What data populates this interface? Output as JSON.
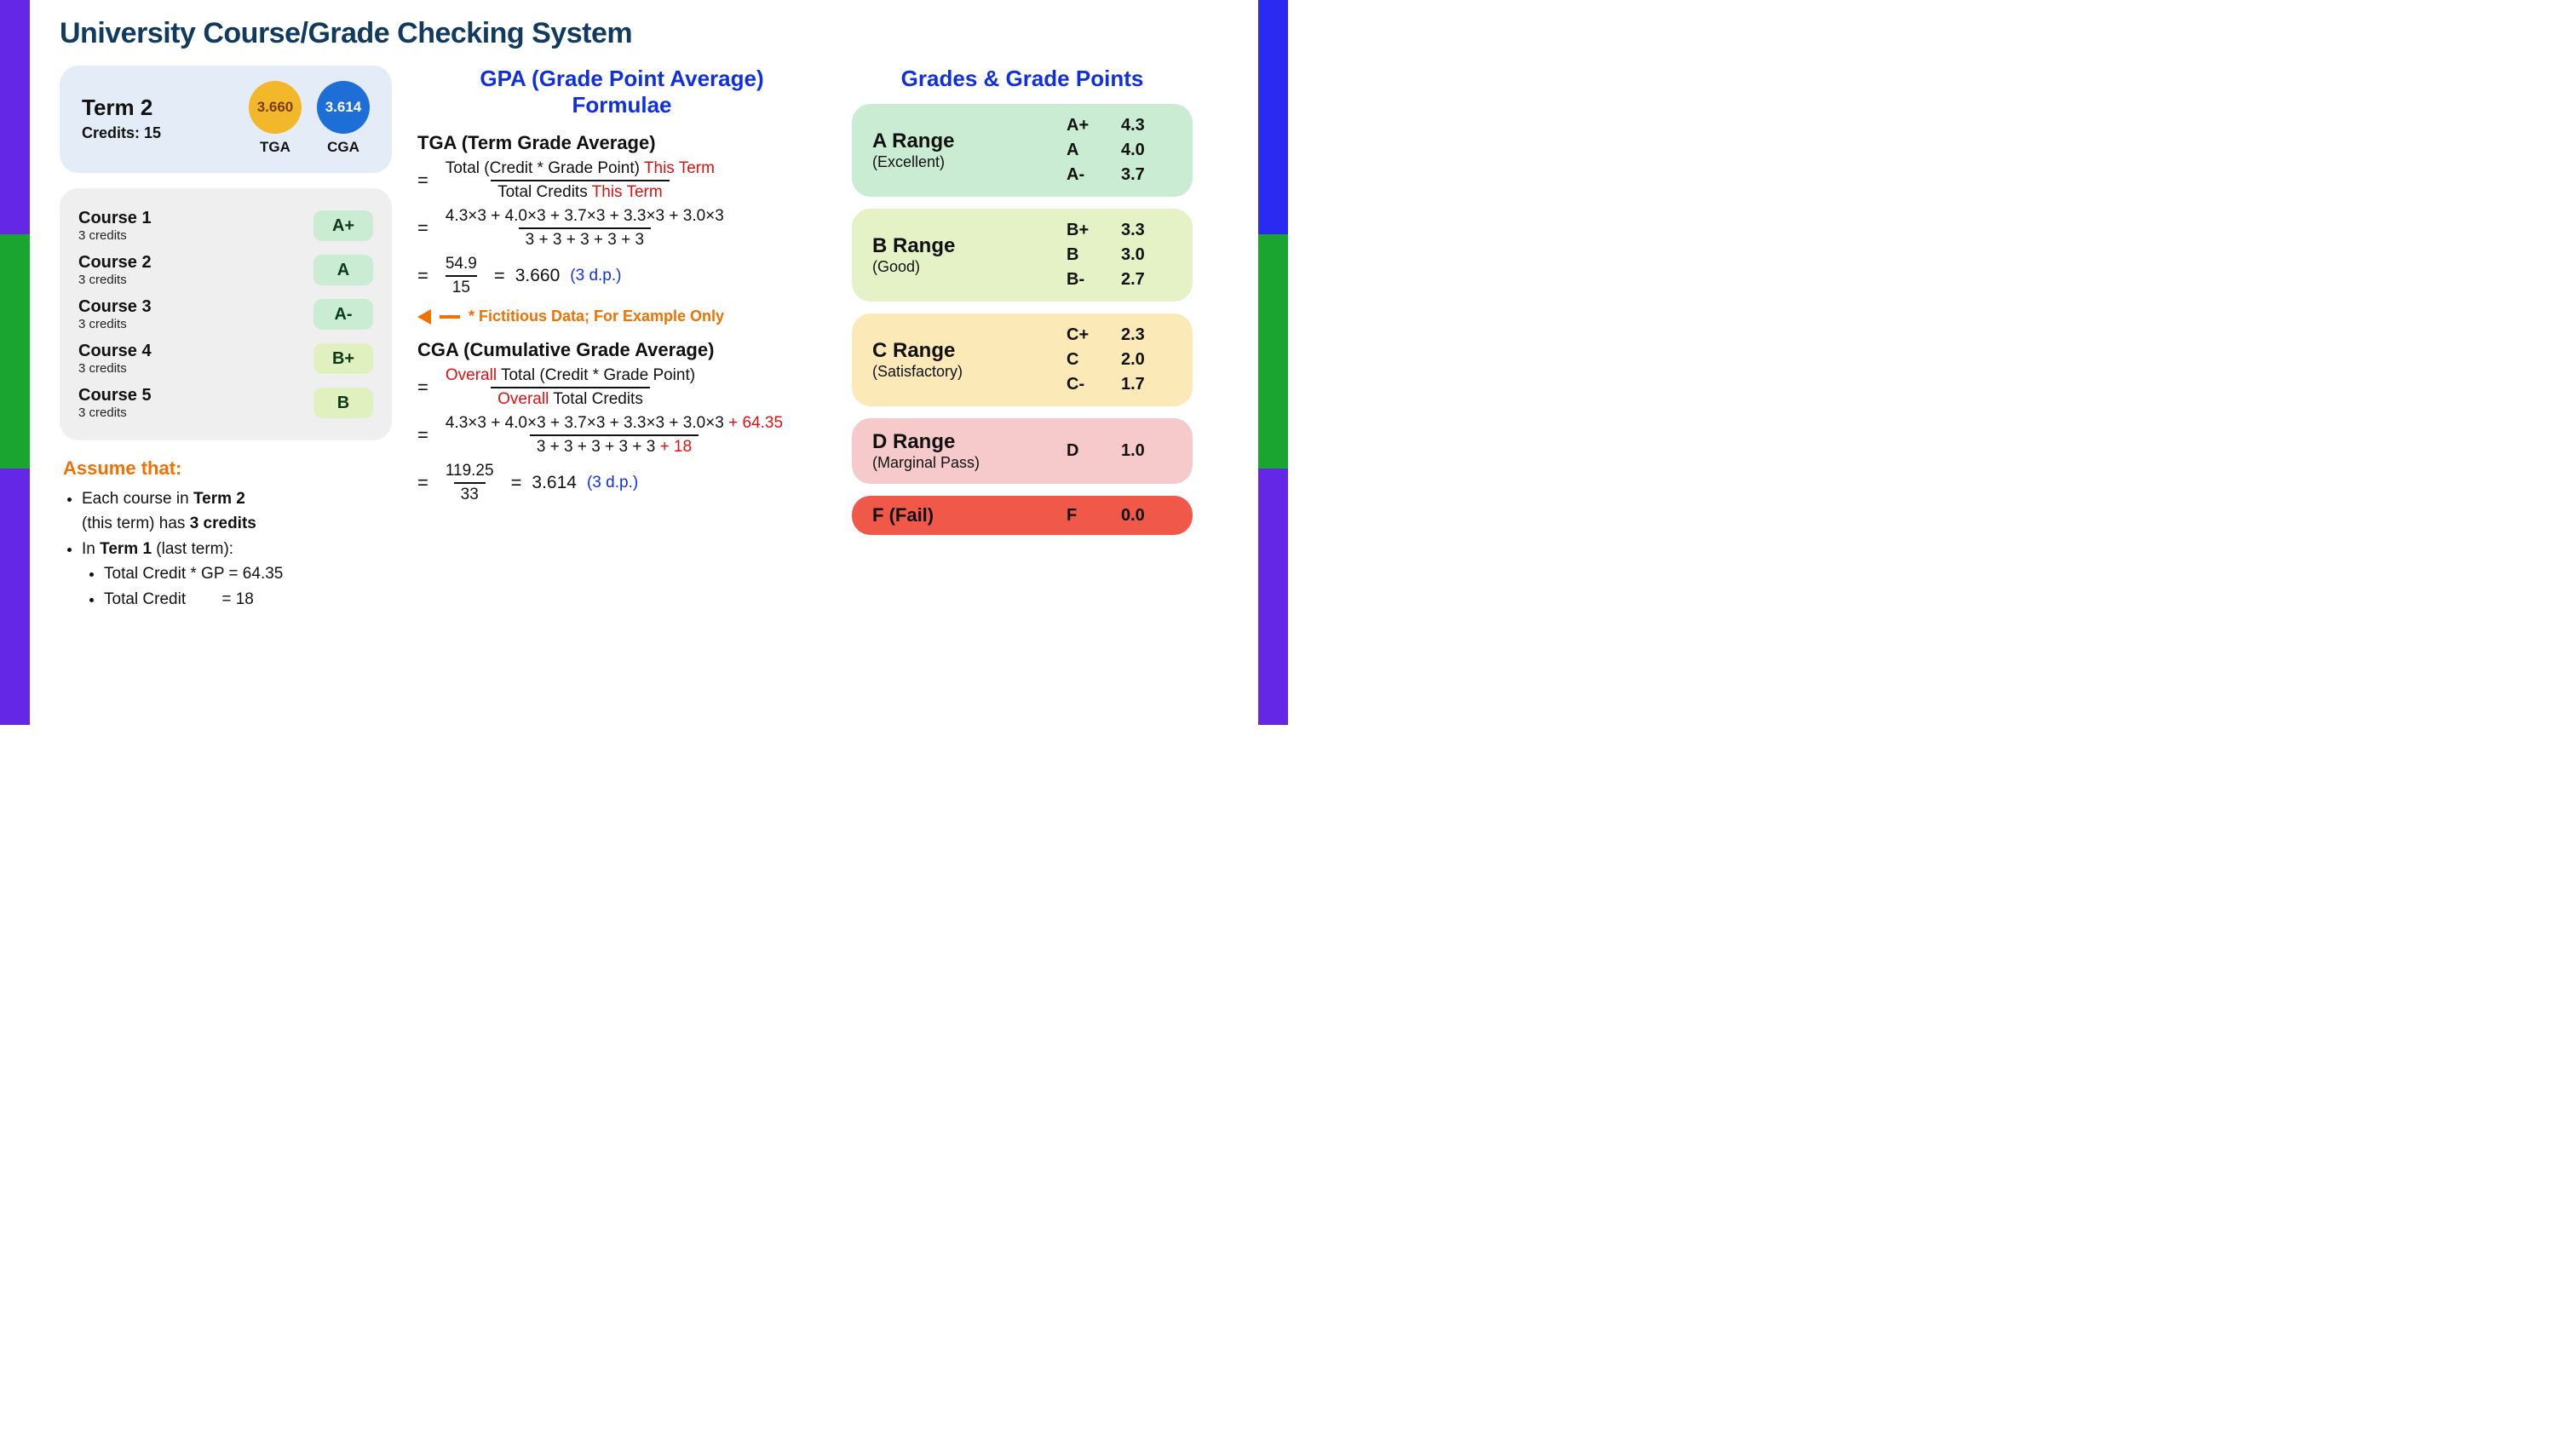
{
  "title": "University Course/Grade Checking System",
  "term": {
    "name": "Term 2",
    "credits_label": "Credits: 15",
    "tga": {
      "value": "3.660",
      "label": "TGA",
      "bg": "#f3b72a",
      "fg": "#7a3d00"
    },
    "cga": {
      "value": "3.614",
      "label": "CGA",
      "bg": "#1d6fd6",
      "fg": "#ffffff"
    }
  },
  "courses": [
    {
      "name": "Course 1",
      "credits": "3 credits",
      "grade": "A+",
      "pill_bg": "#c9ecd3"
    },
    {
      "name": "Course 2",
      "credits": "3 credits",
      "grade": "A",
      "pill_bg": "#c9ecd3"
    },
    {
      "name": "Course 3",
      "credits": "3 credits",
      "grade": "A-",
      "pill_bg": "#c9ecd3"
    },
    {
      "name": "Course 4",
      "credits": "3 credits",
      "grade": "B+",
      "pill_bg": "#e1f0bf"
    },
    {
      "name": "Course 5",
      "credits": "3 credits",
      "grade": "B",
      "pill_bg": "#e1f0bf"
    }
  ],
  "assume": {
    "title": "Assume that:",
    "line1_a": "Each course in ",
    "line1_b": "Term 2",
    "line2_a": "(this term) has ",
    "line2_b": "3 credits",
    "line3_a": "In ",
    "line3_b": "Term 1",
    "line3_c": " (last term):",
    "sub1": "Total Credit * GP = 64.35",
    "sub2": "Total Credit        = 18"
  },
  "formulae": {
    "heading1": "GPA (Grade Point Average)",
    "heading2": "Formulae",
    "tga_title": "TGA (Term Grade Average)",
    "tga_def_num_a": "Total (Credit * Grade Point) ",
    "tga_def_num_b": "This Term",
    "tga_def_den_a": "Total Credits ",
    "tga_def_den_b": "This Term",
    "tga_calc_num": "4.3×3 + 4.0×3 + 3.7×3 + 3.3×3 + 3.0×3",
    "tga_calc_den": "3 + 3 + 3 + 3 + 3",
    "tga_simpl_num": "54.9",
    "tga_simpl_den": "15",
    "tga_result": "3.660",
    "dp_note": "(3 d.p.)",
    "fict_note": "* Fictitious Data; For Example Only",
    "cga_title": "CGA (Cumulative Grade Average)",
    "cga_def_num_a": "Overall",
    "cga_def_num_b": " Total (Credit * Grade Point)",
    "cga_def_den_a": "Overall",
    "cga_def_den_b": " Total Credits",
    "cga_calc_num_a": "4.3×3 + 4.0×3 + 3.7×3 + 3.3×3 + 3.0×3 ",
    "cga_calc_num_b": "+ 64.35",
    "cga_calc_den_a": "3 + 3 + 3 + 3 + 3 ",
    "cga_calc_den_b": "+ 18",
    "cga_simpl_num": "119.25",
    "cga_simpl_den": "33",
    "cga_result": "3.614"
  },
  "grade_table": {
    "title": "Grades & Grade Points",
    "ranges": [
      {
        "name": "A Range",
        "desc": "(Excellent)",
        "bg": "#c9ecd3",
        "rows": [
          [
            "A+",
            "4.3"
          ],
          [
            "A",
            "4.0"
          ],
          [
            "A-",
            "3.7"
          ]
        ]
      },
      {
        "name": "B Range",
        "desc": "(Good)",
        "bg": "#e4f2c6",
        "rows": [
          [
            "B+",
            "3.3"
          ],
          [
            "B",
            "3.0"
          ],
          [
            "B-",
            "2.7"
          ]
        ]
      },
      {
        "name": "C Range",
        "desc": "(Satisfactory)",
        "bg": "#fbe9b8",
        "rows": [
          [
            "C+",
            "2.3"
          ],
          [
            "C",
            "2.0"
          ],
          [
            "C-",
            "1.7"
          ]
        ]
      },
      {
        "name": "D Range",
        "desc": "(Marginal Pass)",
        "bg": "#f6c9cb",
        "rows": [
          [
            "D",
            "1.0"
          ]
        ]
      }
    ],
    "f_range": {
      "name": "F",
      "desc": "(Fail)",
      "bg": "#f0584a",
      "rows": [
        [
          "F",
          "0.0"
        ]
      ]
    }
  },
  "border_colors": {
    "purple": "#6427e6",
    "green": "#1aa531",
    "blue": "#2a2af0"
  }
}
